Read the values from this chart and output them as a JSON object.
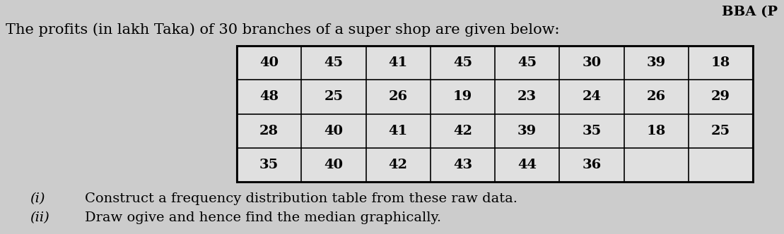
{
  "title_text": "The profits (in lakh Taka) of 30 branches of a super shop are given below:",
  "header_text": "BBA (P",
  "table_data": [
    [
      "40",
      "45",
      "41",
      "45",
      "45",
      "30",
      "39",
      "18"
    ],
    [
      "48",
      "25",
      "26",
      "19",
      "23",
      "24",
      "26",
      "29"
    ],
    [
      "28",
      "40",
      "41",
      "42",
      "39",
      "35",
      "18",
      "25"
    ],
    [
      "35",
      "40",
      "42",
      "43",
      "44",
      "36",
      "",
      ""
    ]
  ],
  "item_i": "(i)",
  "text_i": "Construct a frequency distribution table from these raw data.",
  "item_ii": "(ii)",
  "text_ii": "Draw ogive and hence find the median graphically.",
  "bg_color": "#cccccc",
  "font_size_title": 15,
  "font_size_table": 14,
  "font_size_items": 14,
  "font_size_header": 14,
  "cols": 8,
  "rows": 4
}
